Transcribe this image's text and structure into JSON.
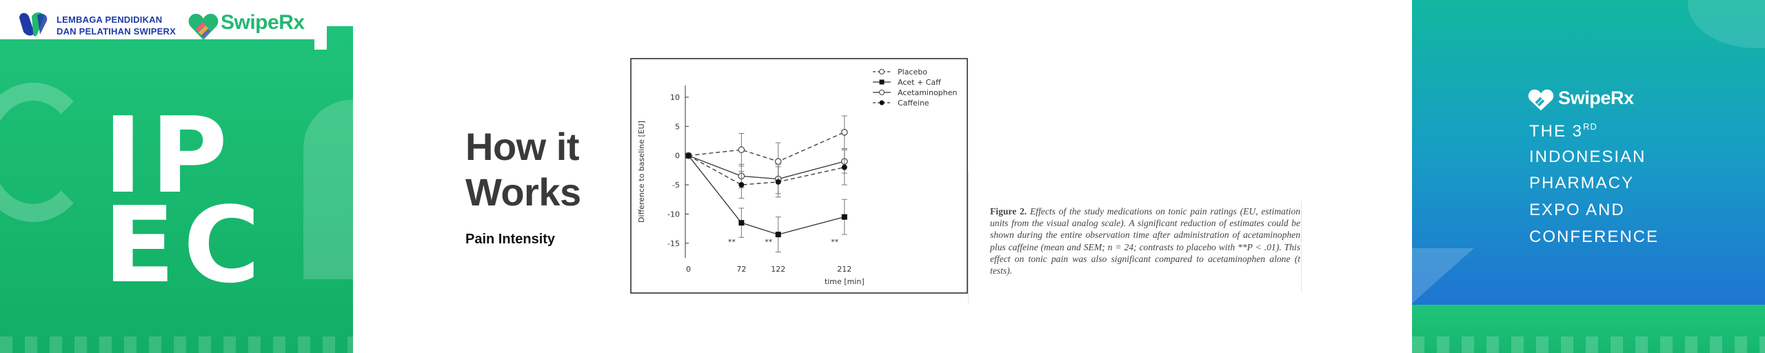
{
  "left_panel": {
    "org_line1": "LEMBAGA PENDIDIKAN",
    "org_line2": "DAN PELATIHAN SWIPERX",
    "brand": "SwipeRx",
    "title_line1": "IP",
    "title_line2": "EC"
  },
  "slide": {
    "title_line1": "How it",
    "title_line2": "Works",
    "subtitle": "Pain Intensity"
  },
  "chart_data": {
    "type": "line",
    "ylabel": "Difference to baseline [EU]",
    "xlabel": "time [min]",
    "x": [
      0,
      72,
      122,
      212
    ],
    "x_tick_labels": [
      "0",
      "72",
      "122",
      "212"
    ],
    "y_ticks": [
      10,
      5,
      0,
      -5,
      -10,
      -15
    ],
    "ylim": [
      -17.5,
      12
    ],
    "legend_position": "top-right",
    "series": [
      {
        "name": "Placebo",
        "marker": "open-circle",
        "line": "dashed",
        "values": [
          0,
          1,
          -1,
          4
        ],
        "err": [
          0,
          2.8,
          3.2,
          2.8
        ]
      },
      {
        "name": "Acet + Caff",
        "marker": "filled-square",
        "line": "solid",
        "values": [
          0,
          -11.5,
          -13.5,
          -10.5
        ],
        "err": [
          0,
          2.5,
          3,
          3
        ]
      },
      {
        "name": "Acetaminophen",
        "marker": "open-circle",
        "line": "solid",
        "values": [
          0,
          -3.5,
          -4,
          -1
        ],
        "err": [
          0,
          2,
          2.5,
          2
        ]
      },
      {
        "name": "Caffeine",
        "marker": "filled-circle",
        "line": "dashed",
        "values": [
          0,
          -5,
          -4.5,
          -2
        ],
        "err": [
          0,
          2.3,
          2.6,
          3
        ]
      }
    ],
    "annotations": [
      {
        "x": 72,
        "text": "**"
      },
      {
        "x": 122,
        "text": "**"
      },
      {
        "x": 212,
        "text": "**"
      }
    ]
  },
  "caption": {
    "figure_label": "Figure 2.",
    "text": "Effects of the study medications on tonic pain ratings (EU, estimation units from the visual analog scale). A significant reduction of estimates could be shown during the entire observation time after administration of acetaminophen plus caffeine (mean and SEM; n = 24; contrasts to placebo with **P < .01). This effect on tonic pain was also significant compared to acetaminophen alone (t tests)."
  },
  "right_panel": {
    "brand": "SwipeRx",
    "line1_prefix": "THE 3",
    "line1_sup": "RD",
    "line2": "INDONESIAN",
    "line3": "PHARMACY",
    "line4": "EXPO AND",
    "line5": "CONFERENCE"
  },
  "colors": {
    "green": "#1fc47a",
    "blue_dark": "#2168d6",
    "logo_navy": "#1d3aa8"
  }
}
